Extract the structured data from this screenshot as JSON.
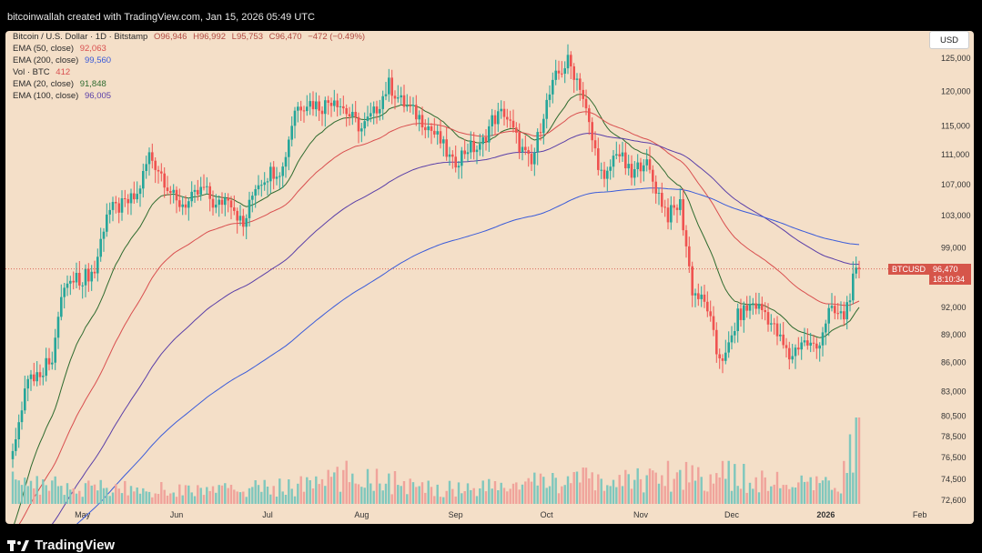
{
  "header": {
    "text": "bitcoinwallah created with TradingView.com, Jan 15, 2026 05:49 UTC"
  },
  "legend": {
    "title": "Bitcoin / U.S. Dollar · 1D · Bitstamp",
    "ohlc": {
      "o": "O96,946",
      "h": "H96,992",
      "l": "L95,753",
      "c": "C96,470",
      "chg": "−472 (−0.49%)"
    },
    "indicators": [
      {
        "label": "EMA (50, close)",
        "value": "92,063",
        "color": "#d94f4f"
      },
      {
        "label": "EMA (200, close)",
        "value": "99,560",
        "color": "#3a5bd9"
      },
      {
        "label": "Vol · BTC",
        "value": "412",
        "color": "#d94f4f"
      },
      {
        "label": "EMA (20, close)",
        "value": "91,848",
        "color": "#2f6b2f"
      },
      {
        "label": "EMA (100, close)",
        "value": "96,005",
        "color": "#5a3fa8"
      }
    ]
  },
  "currency_button": "USD",
  "price_tag": {
    "symbol": "BTCUSD",
    "price": "96,470",
    "countdown": "18:10:34"
  },
  "brand": "TradingView",
  "chart_data": {
    "type": "candlestick",
    "y_log": true,
    "y_ticks": [
      "125,000",
      "120,000",
      "115,000",
      "111,000",
      "107,000",
      "103,000",
      "99,000",
      "92,000",
      "89,000",
      "86,000",
      "83,000",
      "80,500",
      "78,500",
      "76,500",
      "74,500",
      "72,600"
    ],
    "y_tick_values": [
      125000,
      120000,
      115000,
      111000,
      107000,
      103000,
      99000,
      92000,
      89000,
      86000,
      83000,
      80500,
      78500,
      76500,
      74500,
      72600
    ],
    "x_ticks": [
      "May",
      "Jun",
      "Jul",
      "Aug",
      "Sep",
      "Oct",
      "Nov",
      "Dec",
      "2026",
      "Feb"
    ],
    "x_tick_days": [
      0,
      31,
      61,
      92,
      123,
      153,
      184,
      214,
      245,
      276
    ],
    "last_price": 96470,
    "close_keyframes": [
      [
        -23,
        77000
      ],
      [
        -18,
        84500
      ],
      [
        -14,
        85000
      ],
      [
        -10,
        86800
      ],
      [
        -6,
        94500
      ],
      [
        0,
        95500
      ],
      [
        4,
        96200
      ],
      [
        8,
        103500
      ],
      [
        13,
        104200
      ],
      [
        18,
        105500
      ],
      [
        22,
        111000
      ],
      [
        26,
        108500
      ],
      [
        31,
        104500
      ],
      [
        35,
        104700
      ],
      [
        40,
        106500
      ],
      [
        44,
        104000
      ],
      [
        48,
        105700
      ],
      [
        53,
        101500
      ],
      [
        57,
        107000
      ],
      [
        62,
        108700
      ],
      [
        66,
        109200
      ],
      [
        70,
        117500
      ],
      [
        74,
        118500
      ],
      [
        79,
        117800
      ],
      [
        83,
        119200
      ],
      [
        88,
        116500
      ],
      [
        92,
        114600
      ],
      [
        96,
        116800
      ],
      [
        101,
        121000
      ],
      [
        105,
        118500
      ],
      [
        109,
        117000
      ],
      [
        113,
        115500
      ],
      [
        118,
        112800
      ],
      [
        122,
        109700
      ],
      [
        127,
        112000
      ],
      [
        131,
        111800
      ],
      [
        135,
        115800
      ],
      [
        139,
        117000
      ],
      [
        144,
        112300
      ],
      [
        148,
        109500
      ],
      [
        152,
        117000
      ],
      [
        156,
        122000
      ],
      [
        160,
        124500
      ],
      [
        164,
        121000
      ],
      [
        168,
        113000
      ],
      [
        172,
        107000
      ],
      [
        176,
        111800
      ],
      [
        181,
        108000
      ],
      [
        185,
        110500
      ],
      [
        188,
        107500
      ],
      [
        193,
        103000
      ],
      [
        197,
        104500
      ],
      [
        201,
        94000
      ],
      [
        206,
        92000
      ],
      [
        209,
        87000
      ],
      [
        212,
        86500
      ],
      [
        216,
        91000
      ],
      [
        221,
        92500
      ],
      [
        225,
        91500
      ],
      [
        229,
        89000
      ],
      [
        233,
        86500
      ],
      [
        237,
        88300
      ],
      [
        242,
        87500
      ],
      [
        246,
        91500
      ],
      [
        251,
        91000
      ],
      [
        254,
        95000
      ],
      [
        256,
        96470
      ]
    ],
    "volume_keyframes": [
      [
        -23,
        110
      ],
      [
        10,
        80
      ],
      [
        40,
        70
      ],
      [
        70,
        90
      ],
      [
        92,
        160
      ],
      [
        110,
        80
      ],
      [
        140,
        90
      ],
      [
        160,
        130
      ],
      [
        175,
        110
      ],
      [
        185,
        140
      ],
      [
        200,
        160
      ],
      [
        210,
        150
      ],
      [
        225,
        120
      ],
      [
        240,
        90
      ],
      [
        250,
        110
      ],
      [
        256,
        412
      ]
    ],
    "ema_series": [
      {
        "name": "EMA (20, close)",
        "period": 20,
        "color": "#2f6b2f",
        "value": "91,848"
      },
      {
        "name": "EMA (50, close)",
        "period": 50,
        "color": "#d94f4f",
        "value": "92,063"
      },
      {
        "name": "EMA (100, close)",
        "period": 100,
        "color": "#5a3fa8",
        "value": "96,005"
      },
      {
        "name": "EMA (200, close)",
        "period": 200,
        "color": "#3a5bd9",
        "value": "99,560"
      }
    ],
    "colors": {
      "up": "#26a69a",
      "down": "#ef5350",
      "bg": "#f4dfc8",
      "vol_up": "#7fc7bd",
      "vol_down": "#f0a39b"
    }
  }
}
